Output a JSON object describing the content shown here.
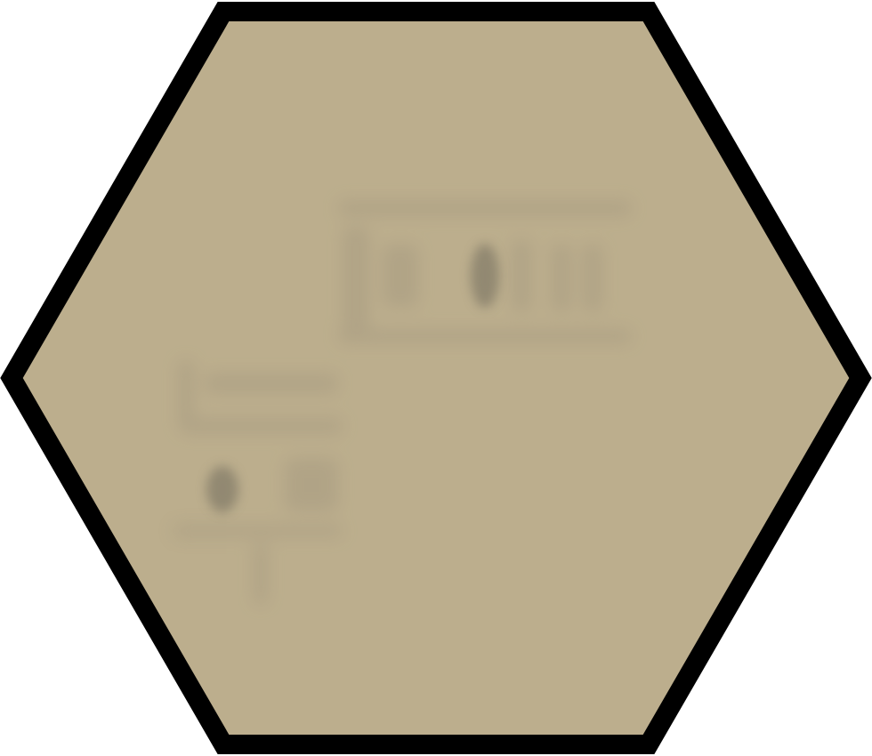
{
  "tile": {
    "shape": "hexagon",
    "orientation": "flat-top",
    "fill_color": "#bcae8d",
    "border_color": "#000000",
    "texture_color": "#9c917a",
    "spot_color": "#6f6a5c"
  }
}
